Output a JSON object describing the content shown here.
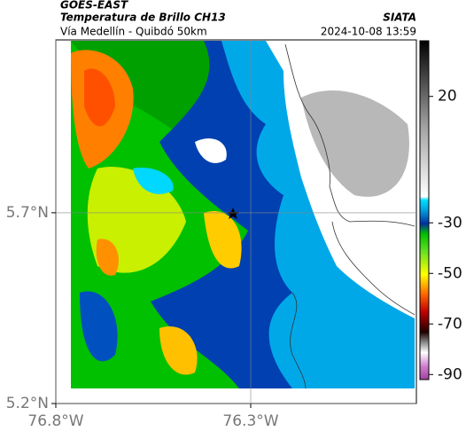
{
  "header": {
    "title": "GOES-EAST",
    "subtitle": "Temperatura de Brillo CH13",
    "route": "Vía Medellín - Quibdó 50km",
    "source": "SIATA",
    "timestamp": "2024-10-08 13:59"
  },
  "map": {
    "xlim": [
      -76.8,
      -75.875
    ],
    "ylim": [
      5.2,
      6.153
    ],
    "xticks": [
      {
        "value": -76.8,
        "label": "76.8°W"
      },
      {
        "value": -76.3,
        "label": "76.3°W"
      }
    ],
    "yticks": [
      {
        "value": 5.2,
        "label": "5.2°N"
      },
      {
        "value": 5.7,
        "label": "5.7°N"
      }
    ],
    "grid": true
  },
  "colorbar": {
    "clim": [
      -92,
      42
    ],
    "ticks": [
      20,
      -30,
      -50,
      -70,
      -90
    ]
  }
}
